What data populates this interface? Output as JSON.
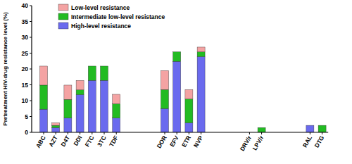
{
  "chart_data": {
    "type": "bar",
    "stacked": true,
    "legend": "upper left",
    "y_label": "Pretreatment HIV-drug resistance level (%)",
    "categories": [
      "ABC",
      "AZT",
      "D4T",
      "DDI",
      "FTC",
      "3TC",
      "TDF",
      null,
      null,
      null,
      "DOR",
      "EFV",
      "ETR",
      "NVP",
      null,
      null,
      null,
      "DRV/r",
      "LPV/r",
      null,
      null,
      null,
      "RAL",
      "DTG"
    ],
    "series": [
      {
        "name": "High-level resistance",
        "color": "#6a6aee",
        "values": [
          7.3,
          1.5,
          4.5,
          11.9,
          16.4,
          16.4,
          4.5,
          null,
          null,
          null,
          7.5,
          22.4,
          3.0,
          23.9,
          null,
          null,
          null,
          0,
          0,
          null,
          null,
          null,
          2.2,
          0
        ]
      },
      {
        "name": "Intermediate low-level resistance",
        "color": "#22bb22",
        "values": [
          7.6,
          0.7,
          5.9,
          1.5,
          4.5,
          4.5,
          4.5,
          null,
          null,
          null,
          6.0,
          3.0,
          7.5,
          1.5,
          null,
          null,
          null,
          0,
          1.5,
          null,
          null,
          null,
          0,
          2.2
        ]
      },
      {
        "name": "Low-level resistance",
        "color": "#f4a3a3",
        "values": [
          6.0,
          0.8,
          4.5,
          3.0,
          0,
          0,
          3.0,
          null,
          null,
          null,
          6.0,
          0,
          3.0,
          1.5,
          null,
          null,
          null,
          0,
          0,
          null,
          null,
          null,
          0,
          0
        ]
      }
    ],
    "ylim": [
      0,
      40
    ],
    "yticks": [
      0,
      5,
      10,
      15,
      20,
      25,
      30,
      35,
      40
    ]
  }
}
